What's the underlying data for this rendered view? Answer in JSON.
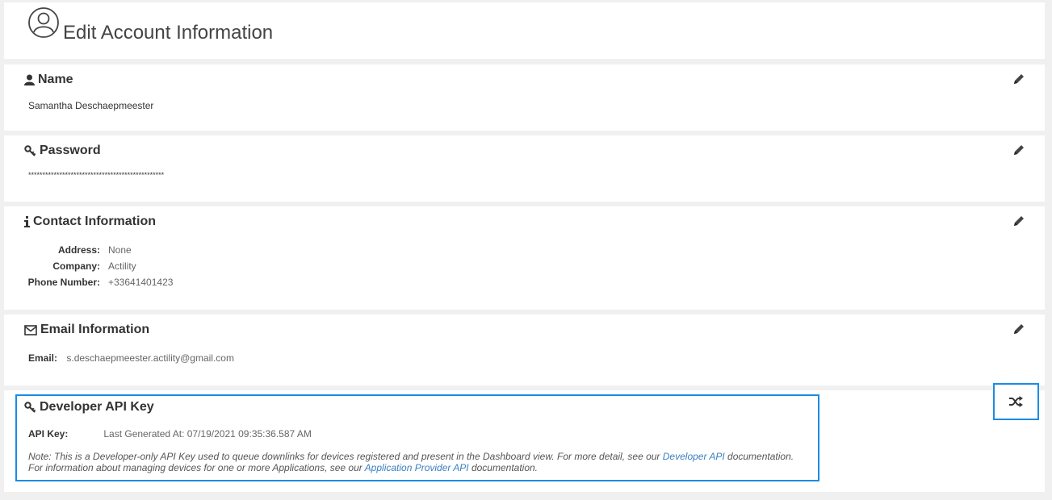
{
  "header": {
    "title": "Edit Account Information",
    "icon": "user-circle-icon"
  },
  "name_section": {
    "title": "Name",
    "icon": "user-icon",
    "value": "Samantha Deschaepmeester",
    "edit_icon": "pencil-icon"
  },
  "password_section": {
    "title": "Password",
    "icon": "key-icon",
    "value": "************************************************",
    "edit_icon": "pencil-icon"
  },
  "contact_section": {
    "title": "Contact Information",
    "icon": "info-icon",
    "edit_icon": "pencil-icon",
    "fields": [
      {
        "label": "Address:",
        "value": "None"
      },
      {
        "label": "Company:",
        "value": "Actility"
      },
      {
        "label": "Phone Number:",
        "value": "+33641401423"
      }
    ]
  },
  "email_section": {
    "title": "Email Information",
    "icon": "envelope-icon",
    "edit_icon": "pencil-icon",
    "label": "Email:",
    "value": "s.deschaepmeester.actility@gmail.com"
  },
  "api_section": {
    "title": "Developer API Key",
    "icon": "key-icon",
    "label": "API Key:",
    "value": "Last Generated At: 07/19/2021 09:35:36.587 AM",
    "note_part1": "Note: This is a Developer-only API Key used to queue downlinks for devices registered and present in the Dashboard view. For more detail, see our ",
    "link1": "Developer API",
    "note_part2": " documentation.",
    "note_part3": "For information about managing devices for one or more Applications, see our ",
    "link2": "Application Provider API",
    "note_part4": " documentation.",
    "regenerate_icon": "shuffle-icon"
  },
  "colors": {
    "accent": "#1a8ce6",
    "link": "#3a7fc1"
  }
}
